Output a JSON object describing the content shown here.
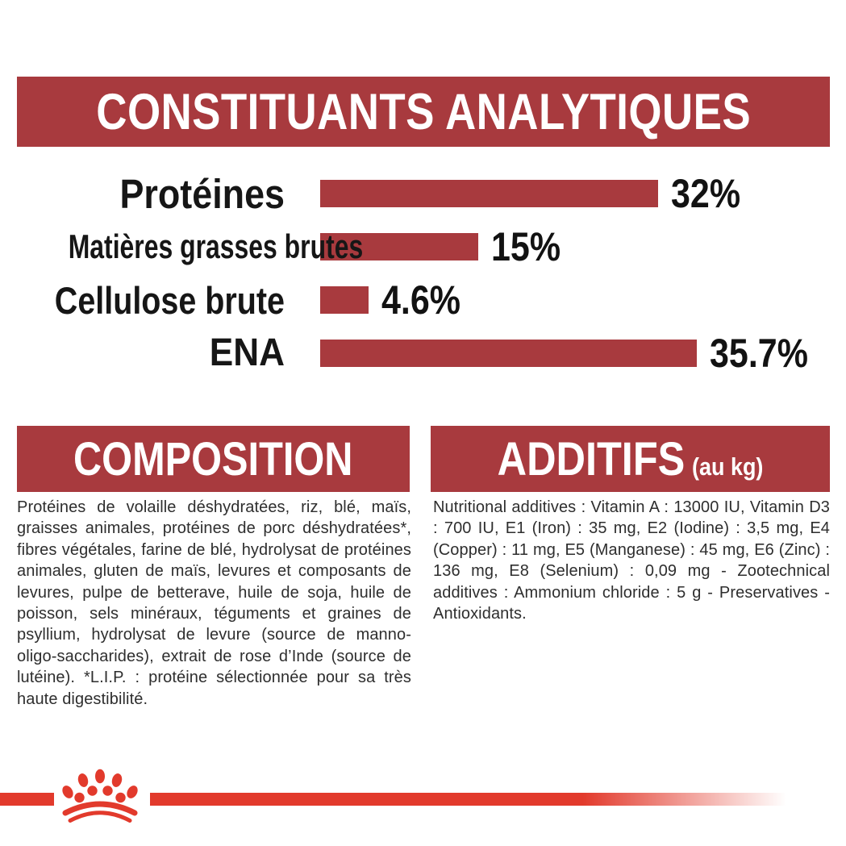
{
  "colors": {
    "maroon": "#A83A3E",
    "logo_red": "#E23A2C",
    "heading_text": "#FFFFFF",
    "body_text": "#2E2E2E"
  },
  "chart_data": {
    "type": "bar",
    "orientation": "horizontal",
    "title": "CONSTITUANTS ANALYTIQUES",
    "categories": [
      "Protéines",
      "Matières grasses brutes",
      "Cellulose brute",
      "ENA"
    ],
    "values": [
      32,
      15,
      4.6,
      35.7
    ],
    "value_labels": [
      "32%",
      "15%",
      "4.6%",
      "35.7%"
    ],
    "value_suffix": "%",
    "xlim": [
      0,
      40
    ],
    "bar_color": "#A83A3E",
    "grid": false,
    "legend": false
  },
  "composition": {
    "title": "COMPOSITION",
    "body": "Protéines de volaille déshydratées, riz, blé, maïs, graisses animales, protéines de porc déshydratées*, fibres végétales, farine de blé, hydrolysat de protéines animales, gluten de maïs, levures et composants de levures, pulpe de betterave, huile de soja, huile de poisson, sels minéraux, téguments et graines de psyllium, hydrolysat de levure (source de manno-oligo-saccharides), extrait de rose d’Inde (source de lutéine). *L.I.P. : protéine sélectionnée pour sa très haute digestibilité."
  },
  "additifs": {
    "title": "ADDITIFS",
    "subtitle": "(au kg)",
    "body": "Nutritional additives : Vitamin A : 13000 IU, Vitamin D3 : 700 IU, E1 (Iron) : 35 mg, E2 (Iodine) : 3,5 mg, E4 (Copper) : 11 mg, E5 (Manganese) : 45 mg, E6 (Zinc) : 136 mg, E8 (Selenium) : 0,09 mg - Zootechnical additives : Ammonium chloride : 5 g - Preservatives - Antioxidants."
  },
  "footer": {
    "logo": "royal-canin-crown"
  }
}
